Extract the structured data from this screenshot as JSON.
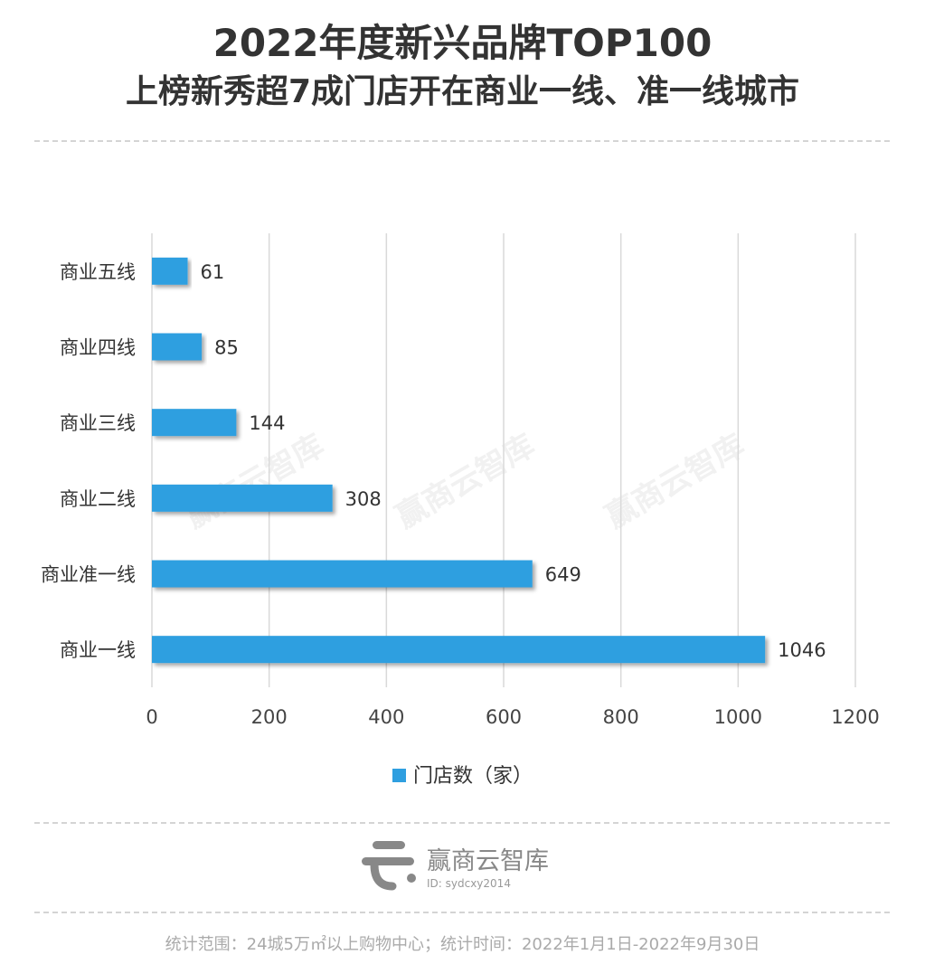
{
  "header": {
    "title": "2022年度新兴品牌TOP100",
    "subtitle": "上榜新秀超7成门店开在商业一线、准一线城市"
  },
  "chart_data": {
    "type": "bar",
    "orientation": "horizontal",
    "categories": [
      "商业五线",
      "商业四线",
      "商业三线",
      "商业二线",
      "商业准一线",
      "商业一线"
    ],
    "series": [
      {
        "name": "门店数（家）",
        "values": [
          61,
          85,
          144,
          308,
          649,
          1046
        ],
        "color": "#2f9fe0"
      }
    ],
    "xlim": [
      0,
      1200
    ],
    "xticks": [
      0,
      200,
      400,
      600,
      800,
      1000,
      1200
    ],
    "grid": "vertical",
    "legend": "bottom",
    "data_labels": true
  },
  "watermark": "赢商云智库",
  "brand": {
    "name": "赢商云智库",
    "id": "ID: sydcxy2014"
  },
  "footer": "统计范围：24城5万㎡以上购物中心；统计时间：2022年1月1日-2022年9月30日"
}
